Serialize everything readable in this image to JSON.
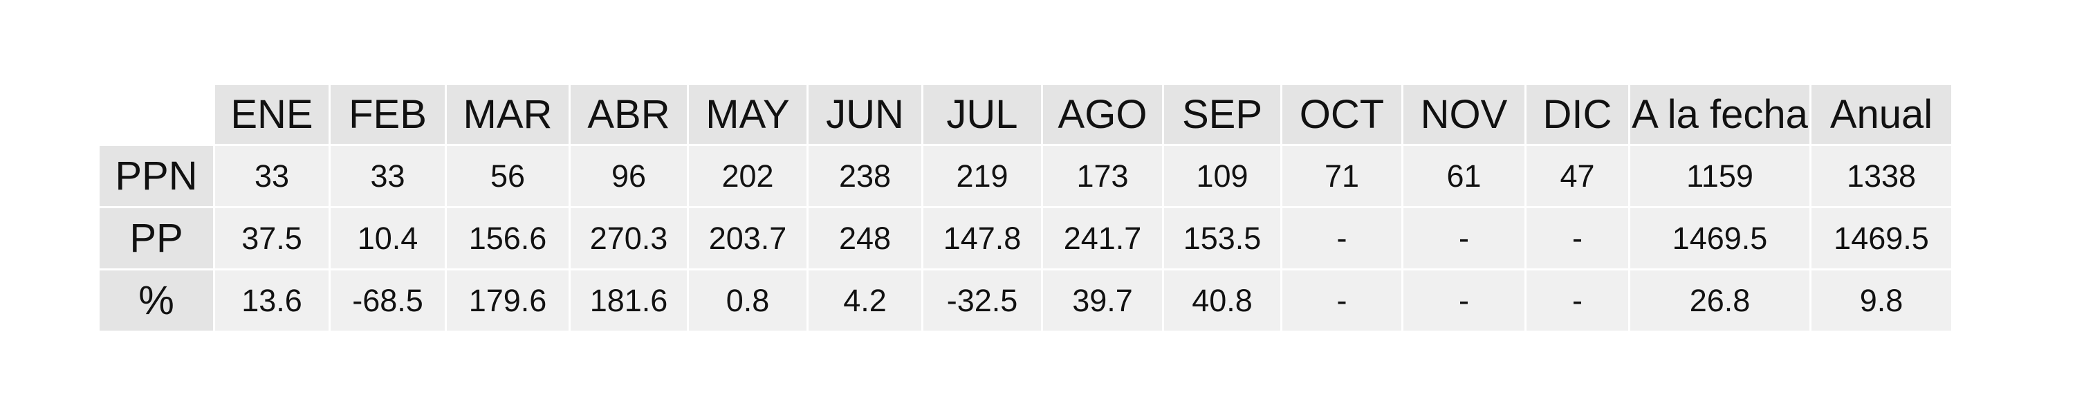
{
  "columns": [
    "ENE",
    "FEB",
    "MAR",
    "ABR",
    "MAY",
    "JUN",
    "JUL",
    "AGO",
    "SEP",
    "OCT",
    "NOV",
    "DIC",
    "A la fecha",
    "Anual"
  ],
  "rows": [
    {
      "label": "PPN",
      "values": [
        "33",
        "33",
        "56",
        "96",
        "202",
        "238",
        "219",
        "173",
        "109",
        "71",
        "61",
        "47",
        "1159",
        "1338"
      ]
    },
    {
      "label": "PP",
      "values": [
        "37.5",
        "10.4",
        "156.6",
        "270.3",
        "203.7",
        "248",
        "147.8",
        "241.7",
        "153.5",
        "-",
        "-",
        "-",
        "1469.5",
        "1469.5"
      ]
    },
    {
      "label": "%",
      "values": [
        "13.6",
        "-68.5",
        "179.6",
        "181.6",
        "0.8",
        "4.2",
        "-32.5",
        "39.7",
        "40.8",
        "-",
        "-",
        "-",
        "26.8",
        "9.8"
      ]
    }
  ],
  "colors": {
    "header_background": "#e4e4e4",
    "cell_background": "#f0f0f0",
    "page_background": "#ffffff"
  }
}
